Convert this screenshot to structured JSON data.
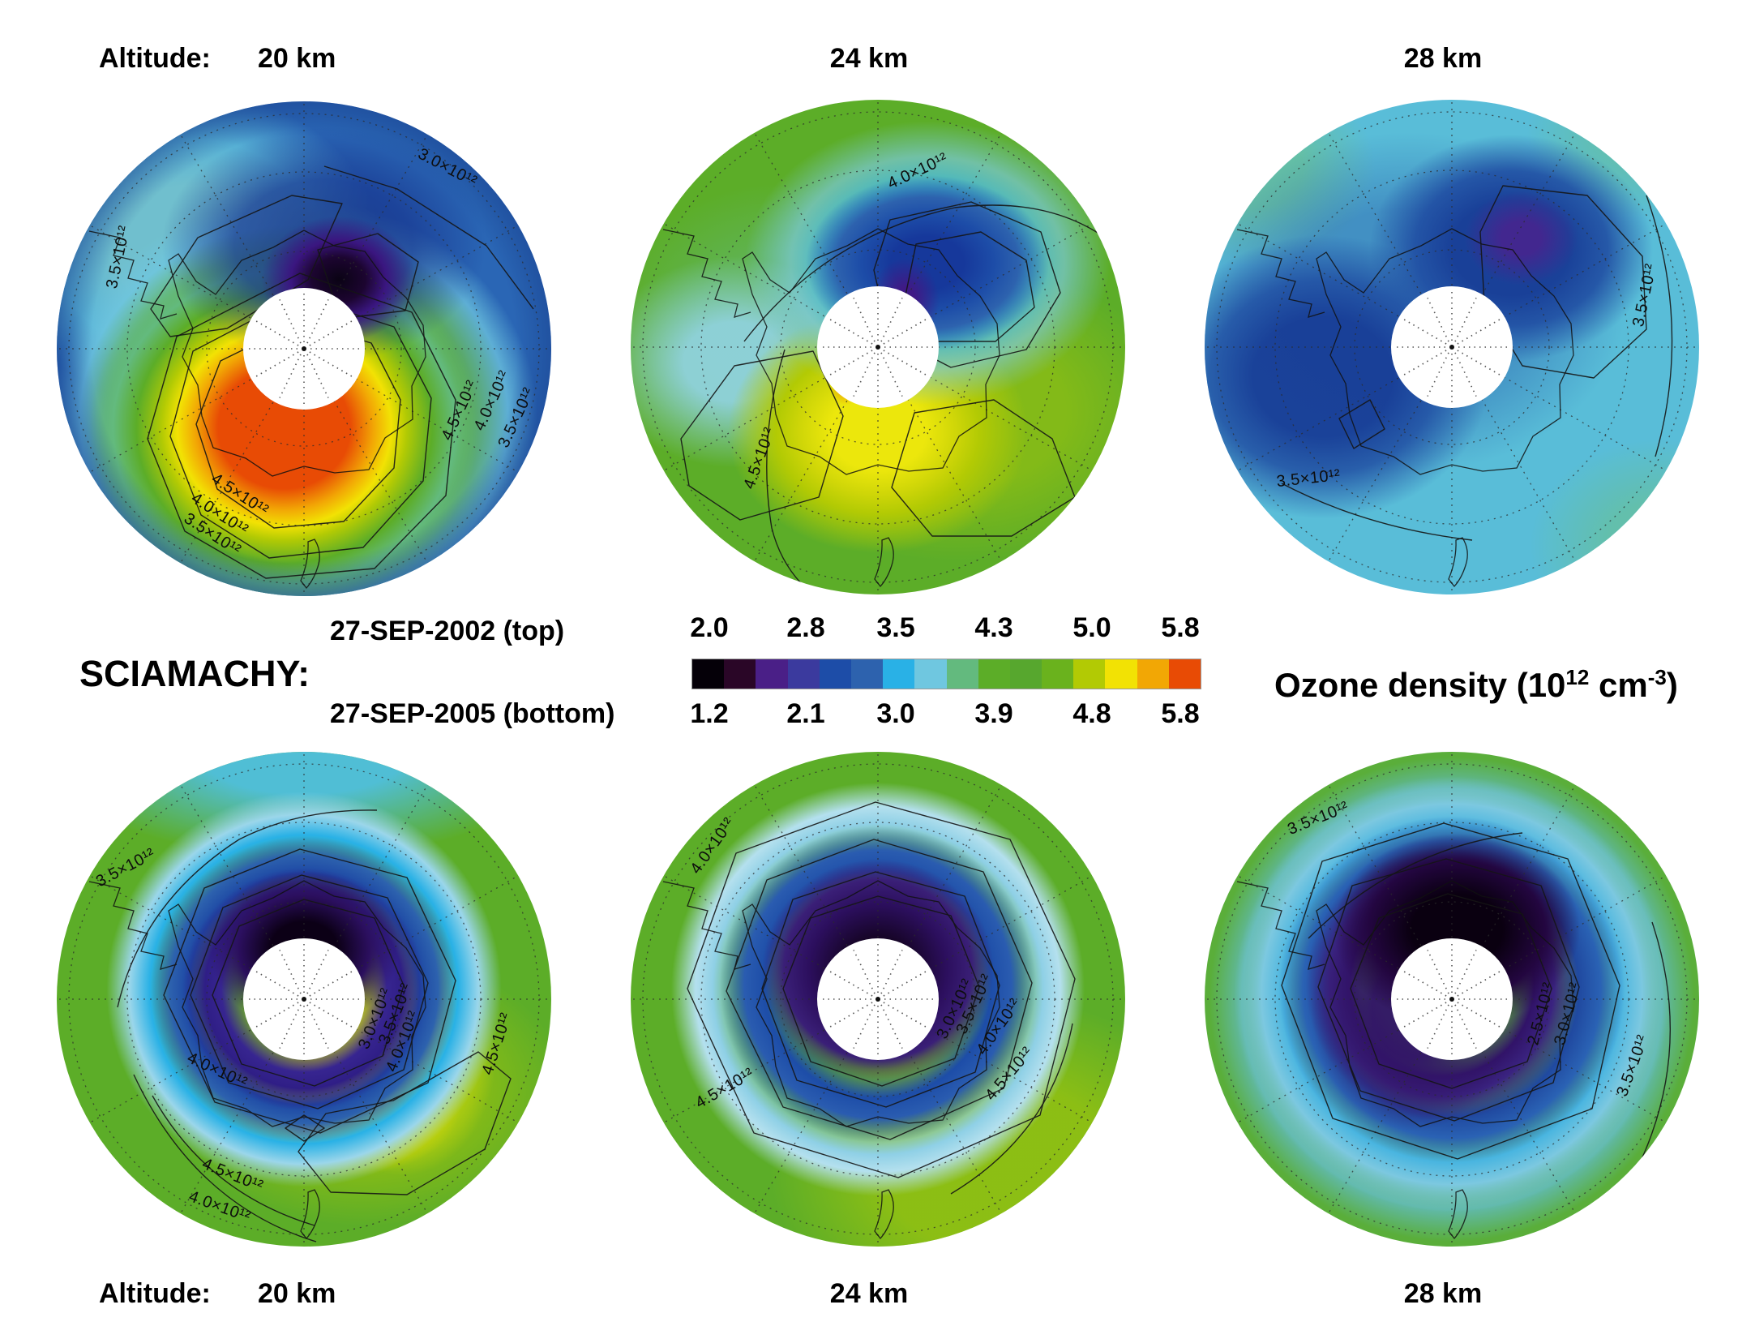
{
  "header": {
    "altitude_label": "Altitude:",
    "altitudes": [
      "20 km",
      "24 km",
      "28 km"
    ]
  },
  "footer": {
    "altitude_label": "Altitude:",
    "altitudes": [
      "20 km",
      "24 km",
      "28 km"
    ]
  },
  "legend": {
    "instrument": "SCIAMACHY:",
    "date_top": "27-SEP-2002 (top)",
    "date_bottom": "27-SEP-2005 (bottom)",
    "scale_top": [
      "2.0",
      "2.8",
      "3.5",
      "4.3",
      "5.0",
      "5.8"
    ],
    "scale_bottom": [
      "1.2",
      "2.1",
      "3.0",
      "3.9",
      "4.8",
      "5.8"
    ],
    "unit": {
      "prefix": "Ozone density (10",
      "exp1": "12",
      "mid": " cm",
      "exp2": "-3",
      "suffix": ")"
    }
  },
  "colorbar": {
    "colors": [
      "#050008",
      "#2a0627",
      "#4a1f87",
      "#3b3a9e",
      "#1d4da8",
      "#2d62ae",
      "#29b1e6",
      "#6fc7e0",
      "#63ba7e",
      "#5cad28",
      "#57a72e",
      "#6ab21d",
      "#b2ca04",
      "#f2e204",
      "#f2a705",
      "#e84b05"
    ]
  },
  "maps": [
    {
      "name": "27-SEP-2002 20 km",
      "contour_labels": [
        {
          "text": "3.0×10¹²"
        },
        {
          "text": "3.5×10¹²"
        },
        {
          "text": "4.5×10¹²"
        },
        {
          "text": "4.0×10¹²"
        },
        {
          "text": "3.5×10¹²"
        },
        {
          "text": "4.5×10¹²"
        },
        {
          "text": "4.0×10¹²"
        },
        {
          "text": "3.5×10¹²"
        }
      ]
    },
    {
      "name": "27-SEP-2002 24 km",
      "contour_labels": [
        {
          "text": "4.0×10¹²"
        },
        {
          "text": "4.5×10¹²"
        }
      ]
    },
    {
      "name": "27-SEP-2002 28 km",
      "contour_labels": [
        {
          "text": "3.5×10¹²"
        },
        {
          "text": "3.5×10¹²"
        }
      ]
    },
    {
      "name": "27-SEP-2005 20 km",
      "contour_labels": [
        {
          "text": "3.5×10¹²"
        },
        {
          "text": "3.0×10¹²"
        },
        {
          "text": "3.5×10¹²"
        },
        {
          "text": "4.0×10¹²"
        },
        {
          "text": "4.5×10¹²"
        },
        {
          "text": "4.0×10¹²"
        },
        {
          "text": "4.5×10¹²"
        },
        {
          "text": "4.0×10¹²"
        }
      ]
    },
    {
      "name": "27-SEP-2005 24 km",
      "contour_labels": [
        {
          "text": "4.0×10¹²"
        },
        {
          "text": "4.5×10¹²"
        },
        {
          "text": "3.0×10¹²"
        },
        {
          "text": "3.5×10¹²"
        },
        {
          "text": "4.0×10¹²"
        },
        {
          "text": "4.5×10¹²"
        }
      ]
    },
    {
      "name": "27-SEP-2005 28 km",
      "contour_labels": [
        {
          "text": "3.5×10¹²"
        },
        {
          "text": "2.5×10¹²"
        },
        {
          "text": "3.0×10¹²"
        },
        {
          "text": "3.5×10¹²"
        }
      ]
    }
  ],
  "chart_data": {
    "type": "heatmap",
    "title": "SCIAMACHY ozone density at 20, 24 and 28 km — 27-SEP-2002 (top row) vs 27-SEP-2005 (bottom row)",
    "quantity": "Ozone density",
    "units": "10^12 cm^-3",
    "projection": "South polar stereographic with white data gap over the pole",
    "rows": [
      {
        "date": "27-SEP-2002",
        "position": "top"
      },
      {
        "date": "27-SEP-2005",
        "position": "bottom"
      }
    ],
    "columns_altitude_km": [
      20,
      24,
      28
    ],
    "colorbar": {
      "segment_colors": [
        "#050008",
        "#2a0627",
        "#4a1f87",
        "#3b3a9e",
        "#1d4da8",
        "#2d62ae",
        "#29b1e6",
        "#6fc7e0",
        "#63ba7e",
        "#5cad28",
        "#57a72e",
        "#6ab21d",
        "#b2ca04",
        "#f2e204",
        "#f2a705",
        "#e84b05"
      ],
      "ticks_top_2002": [
        2.0,
        2.8,
        3.5,
        4.3,
        5.0,
        5.8
      ],
      "ticks_bottom_2005": [
        1.2,
        2.1,
        3.0,
        3.9,
        4.8,
        5.8
      ]
    },
    "panels": [
      {
        "date": "27-SEP-2002",
        "altitude_km": 20,
        "contour_levels_1e12": [
          3.0,
          3.5,
          4.0,
          4.5
        ],
        "features": "Blue background ~3; light cyan band upper-left; dark purple/black low pocket just north of polar gap (~2); large red/orange maximum (~5.8) ringed by yellow and green south of the gap"
      },
      {
        "date": "27-SEP-2002",
        "altitude_km": 24,
        "contour_levels_1e12": [
          4.0,
          4.5
        ],
        "features": "Green background ~4.3; dark blue low with purple core north-east of gap surrounded by cyan halo; pale cyan patch west; yellow lobe ~5 with tiny orange spot south of gap"
      },
      {
        "date": "27-SEP-2002",
        "altitude_km": 28,
        "contour_levels_1e12": [
          3.5
        ],
        "features": "Cyan background ~3.5 with greenish rim; two broad dark blue lows (west, and north-east with purple core ~2.5)"
      },
      {
        "date": "27-SEP-2005",
        "altitude_km": 20,
        "contour_levels_1e12": [
          3.0,
          3.5,
          4.0,
          4.5
        ],
        "features": "Ozone hole: black/purple ring (~1.2–2) around polar gap inside blue ring and cyan collar; green background ~4.4; yellow arc with small orange diamond (~5.4) to the south-east; cyan along top rim"
      },
      {
        "date": "27-SEP-2005",
        "altitude_km": 24,
        "contour_levels_1e12": [
          3.0,
          3.5,
          4.0,
          4.5
        ],
        "features": "Concentric ozone hole: dark purple core ring (~1.5), dark blue ring, pale cyan collar, green background ~4.4, yellow-green south-east sector"
      },
      {
        "date": "27-SEP-2005",
        "altitude_km": 28,
        "contour_levels_1e12": [
          2.5,
          3.0,
          3.5
        ],
        "features": "Very large dark low: black/purple core (~1.2–2) around gap, broad blue ring, cyan then teal collar, green rim ~4.4"
      }
    ]
  }
}
